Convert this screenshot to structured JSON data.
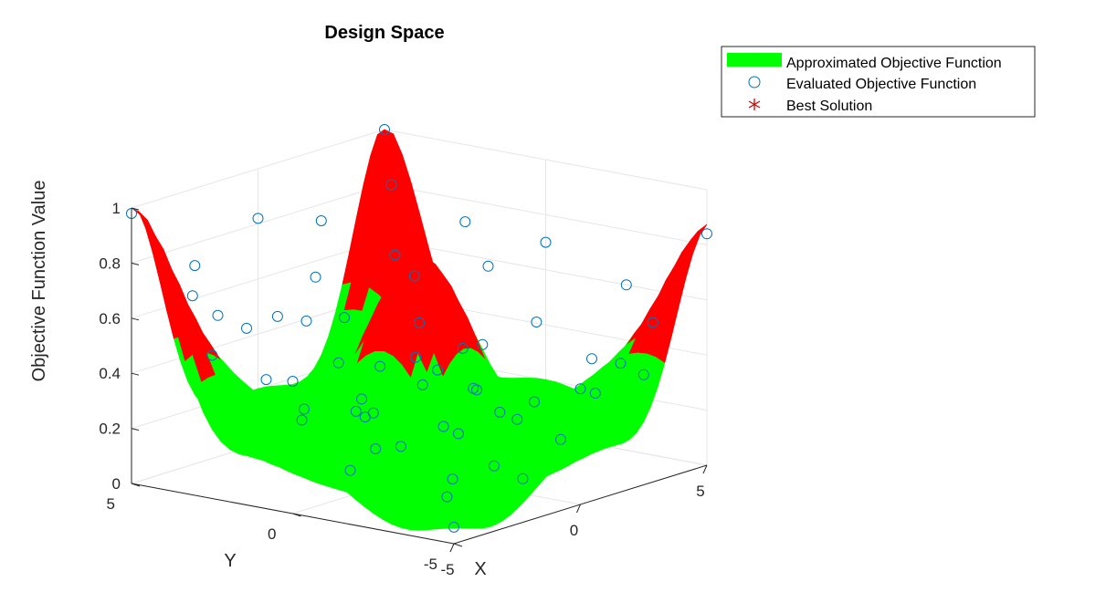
{
  "chart_data": {
    "type": "surface3d",
    "title": "Design Space",
    "xlabel": "X",
    "ylabel": "Y",
    "zlabel": "Objective Function Value",
    "xlim": [
      -5,
      5
    ],
    "ylim": [
      -5,
      5
    ],
    "zlim": [
      0,
      1
    ],
    "xticks": [
      "-5",
      "0",
      "5"
    ],
    "yticks": [
      "-5",
      "0",
      "5"
    ],
    "zticks": [
      "0",
      "0.2",
      "0.4",
      "0.6",
      "0.8",
      "1"
    ],
    "grid": true,
    "legend": {
      "placement": "outside-top-right",
      "entries": [
        {
          "label": "Approximated Objective Function",
          "marker": "patch",
          "color": "#00ff00"
        },
        {
          "label": "Evaluated Objective Function",
          "marker": "open-circle",
          "color": "#0072bd"
        },
        {
          "label": "Best Solution",
          "marker": "asterisk",
          "color": "#d40000"
        }
      ]
    },
    "series": [
      {
        "name": "Approximated Objective Function",
        "kind": "surface",
        "color_low": "#00ff00",
        "color_high": "#ff0000",
        "color_threshold": 0.45,
        "peaks": [
          {
            "x": -5,
            "y": 5,
            "z": 0.98
          },
          {
            "x": 5,
            "y": -5,
            "z": 0.84
          },
          {
            "x": 5,
            "y": 5,
            "z": 0.99
          },
          {
            "x": -5,
            "y": -5,
            "z": 0.06
          },
          {
            "x": 0,
            "y": 0,
            "z": 0.55
          }
        ]
      },
      {
        "name": "Evaluated Objective Function",
        "kind": "scatter",
        "points": [
          [
            -5,
            5,
            0.98
          ],
          [
            5,
            5,
            1.0
          ],
          [
            5,
            -5,
            0.84
          ],
          [
            -5,
            -5,
            0.06
          ],
          [
            0,
            0,
            0.55
          ],
          [
            -2.5,
            5,
            0.72
          ],
          [
            0,
            5,
            0.82
          ],
          [
            2.5,
            5,
            0.74
          ],
          [
            5,
            2.5,
            0.72
          ],
          [
            5,
            0,
            0.7
          ],
          [
            5,
            -2.5,
            0.6
          ],
          [
            -5,
            2.5,
            0.52
          ],
          [
            -5,
            0,
            0.48
          ],
          [
            -5,
            -2.5,
            0.42
          ],
          [
            -2.5,
            -5,
            0.38
          ],
          [
            0,
            -5,
            0.42
          ],
          [
            2.5,
            -5,
            0.4
          ],
          [
            -3.5,
            3.5,
            0.6
          ],
          [
            3.5,
            3.5,
            0.62
          ],
          [
            -3.5,
            -3.5,
            0.35
          ],
          [
            3.5,
            -3.5,
            0.38
          ],
          [
            -1,
            1,
            0.28
          ],
          [
            1,
            -1,
            0.3
          ],
          [
            2,
            1,
            0.3
          ],
          [
            -2,
            2,
            0.25
          ],
          [
            1,
            2,
            0.32
          ],
          [
            -1,
            -2,
            0.22
          ],
          [
            0,
            2.5,
            0.35
          ],
          [
            2.5,
            0,
            0.4
          ],
          [
            -2.5,
            0,
            0.3
          ],
          [
            0,
            -2.5,
            0.28
          ],
          [
            -3,
            -1,
            0.2
          ],
          [
            3,
            1,
            0.35
          ],
          [
            -1.5,
            -3.5,
            0.15
          ],
          [
            1.5,
            3.5,
            0.45
          ],
          [
            -4,
            0.5,
            0.3
          ],
          [
            4,
            -0.5,
            0.45
          ],
          [
            -0.5,
            4,
            0.5
          ],
          [
            0.5,
            -4,
            0.2
          ],
          [
            -4,
            -4,
            0.12
          ],
          [
            4,
            4,
            0.85
          ],
          [
            -4.5,
            3.5,
            0.7
          ],
          [
            3.5,
            -4.5,
            0.55
          ],
          [
            -2,
            -1,
            0.18
          ],
          [
            2,
            -2,
            0.25
          ],
          [
            -3,
            3,
            0.55
          ],
          [
            3,
            -3,
            0.4
          ],
          [
            1,
            4,
            0.6
          ],
          [
            4,
            1,
            0.62
          ],
          [
            -1,
            -4,
            0.1
          ],
          [
            -4,
            -1,
            0.15
          ],
          [
            0.5,
            0.5,
            0.4
          ],
          [
            -0.5,
            -0.5,
            0.35
          ],
          [
            1.5,
            -0.5,
            0.28
          ],
          [
            -1.5,
            0.5,
            0.24
          ],
          [
            3,
            2.5,
            0.58
          ],
          [
            -2.5,
            -3,
            0.12
          ],
          [
            2.5,
            -3.5,
            0.3
          ],
          [
            -3.5,
            2,
            0.4
          ],
          [
            0,
            3.5,
            0.48
          ]
        ]
      },
      {
        "name": "Best Solution",
        "kind": "point",
        "points": []
      }
    ]
  }
}
